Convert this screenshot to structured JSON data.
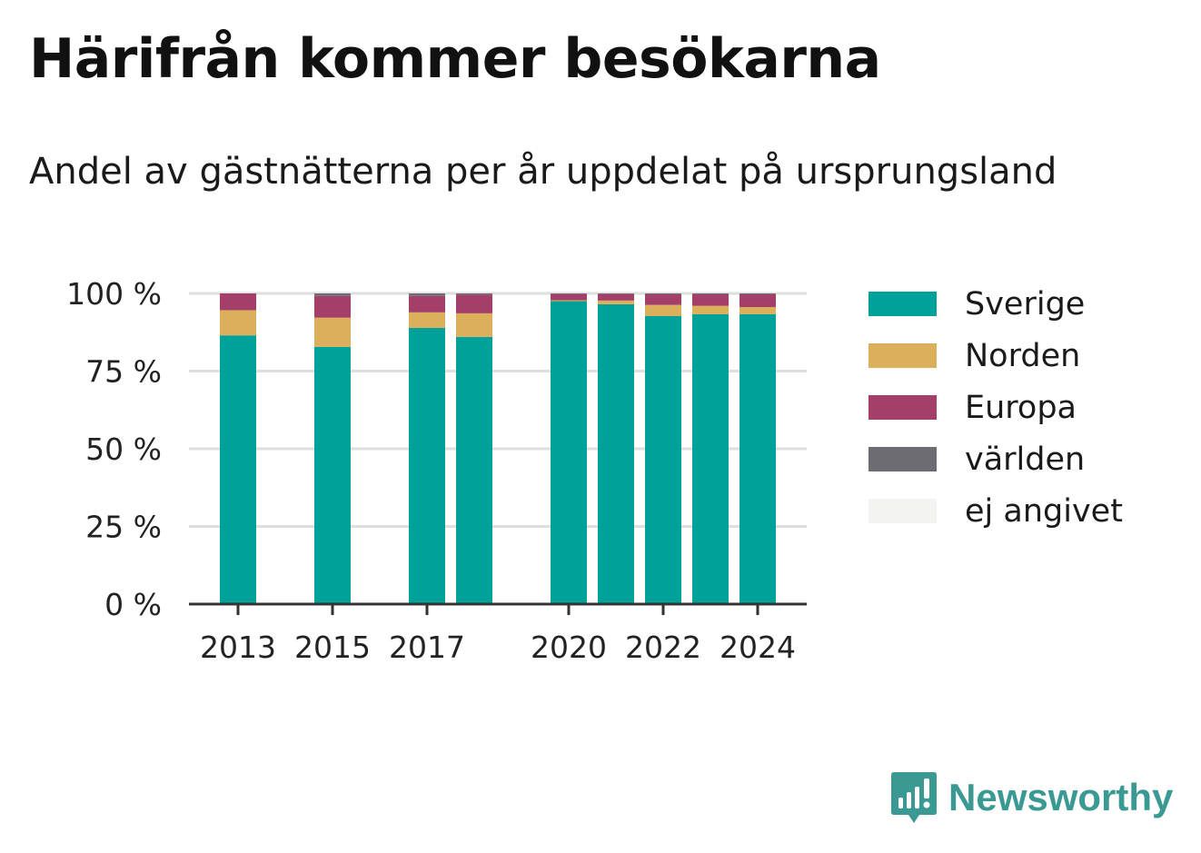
{
  "title": "Härifrån kommer besökarna",
  "subtitle": "Andel av gästnätterna per år uppdelat på ursprungsland",
  "colors": {
    "Sverige": "#00a19a",
    "Norden": "#dcaf5b",
    "Europa": "#a33f68",
    "världen": "#6d6c72",
    "ej angivet": "#f3f3f1",
    "grid": "#dedede",
    "axis": "#333333",
    "brand": "#3a9a93"
  },
  "brand": {
    "name": "Newsworthy",
    "icon": "bar-chart-speech-bubble-icon"
  },
  "chart_data": {
    "type": "bar",
    "stacked": true,
    "x": [
      2013,
      2015,
      2017,
      2018,
      2020,
      2021,
      2022,
      2023,
      2024
    ],
    "x_tick_labels": [
      "2013",
      "2015",
      "2017",
      "2020",
      "2022",
      "2024"
    ],
    "x_ticks": [
      2013,
      2015,
      2017,
      2020,
      2022,
      2024
    ],
    "y_tick_labels": [
      "0 %",
      "25 %",
      "50 %",
      "75 %",
      "100 %"
    ],
    "y_ticks": [
      0,
      25,
      50,
      75,
      100
    ],
    "ylim": [
      0,
      100
    ],
    "xlabel": "",
    "ylabel": "",
    "grid": true,
    "legend_position": "right",
    "series": [
      {
        "name": "Sverige",
        "values": [
          86.5,
          82.8,
          88.9,
          86.0,
          97.5,
          96.5,
          92.7,
          93.3,
          93.3
        ]
      },
      {
        "name": "Norden",
        "values": [
          8.1,
          9.4,
          5.0,
          7.6,
          0.3,
          1.2,
          3.6,
          2.7,
          2.3
        ]
      },
      {
        "name": "Europa",
        "values": [
          5.4,
          7.0,
          5.3,
          6.0,
          2.0,
          2.1,
          3.4,
          3.7,
          4.1
        ]
      },
      {
        "name": "världen",
        "values": [
          0.0,
          0.8,
          0.8,
          0.4,
          0.2,
          0.2,
          0.3,
          0.3,
          0.3
        ]
      },
      {
        "name": "ej angivet",
        "values": [
          0,
          0,
          0,
          0,
          0,
          0,
          0,
          0,
          0
        ]
      }
    ]
  }
}
